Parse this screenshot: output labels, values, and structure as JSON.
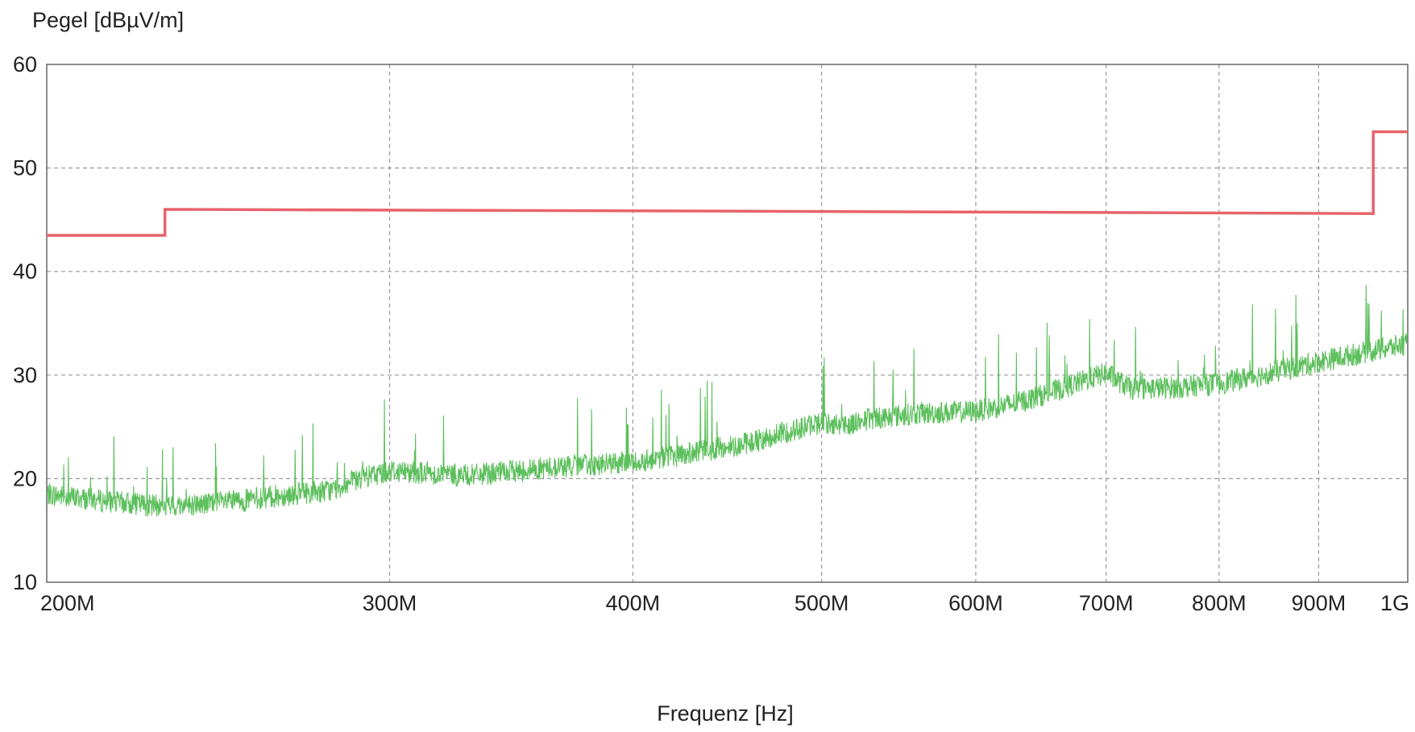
{
  "chart_data": {
    "type": "line",
    "title": "",
    "xlabel": "Frequenz [Hz]",
    "ylabel": "Pegel [dBµV/m]",
    "x_scale": "log",
    "xlim": [
      200000000,
      1000000000
    ],
    "ylim": [
      10,
      60
    ],
    "grid": true,
    "x_ticks": [
      {
        "value": 200000000,
        "label": "200M"
      },
      {
        "value": 300000000,
        "label": "300M"
      },
      {
        "value": 400000000,
        "label": "400M"
      },
      {
        "value": 500000000,
        "label": "500M"
      },
      {
        "value": 600000000,
        "label": "600M"
      },
      {
        "value": 700000000,
        "label": "700M"
      },
      {
        "value": 800000000,
        "label": "800M"
      },
      {
        "value": 900000000,
        "label": "900M"
      },
      {
        "value": 1000000000,
        "label": "1G"
      }
    ],
    "y_ticks": [
      {
        "value": 10,
        "label": "10"
      },
      {
        "value": 20,
        "label": "20"
      },
      {
        "value": 30,
        "label": "30"
      },
      {
        "value": 40,
        "label": "40"
      },
      {
        "value": 50,
        "label": "50"
      },
      {
        "value": 60,
        "label": "60"
      }
    ],
    "series": [
      {
        "color": "#e8636b",
        "x": [
          200000000,
          230000000,
          230000000,
          500000000,
          960000000,
          960000000,
          1000000000
        ],
        "y": [
          43.5,
          43.5,
          46.0,
          45.8,
          45.6,
          53.5,
          53.5
        ]
      },
      {
        "color": "#5cbf5c",
        "x": [
          200000000,
          215000000,
          230000000,
          250000000,
          270000000,
          280000000,
          290000000,
          300000000,
          310000000,
          330000000,
          350000000,
          370000000,
          400000000,
          430000000,
          460000000,
          490000000,
          500000000,
          515000000,
          530000000,
          560000000,
          600000000,
          630000000,
          660000000,
          690000000,
          700000000,
          720000000,
          760000000,
          800000000,
          850000000,
          900000000,
          950000000,
          1000000000
        ],
        "y": [
          18.5,
          17.8,
          17.3,
          17.8,
          18.6,
          18.9,
          20.0,
          20.8,
          20.6,
          20.3,
          20.8,
          21.2,
          21.6,
          22.5,
          23.5,
          25.0,
          25.4,
          25.2,
          25.8,
          26.3,
          26.5,
          27.3,
          28.5,
          29.8,
          30.2,
          28.7,
          28.8,
          29.2,
          30.2,
          31.3,
          32.2,
          33.0
        ]
      }
    ]
  }
}
